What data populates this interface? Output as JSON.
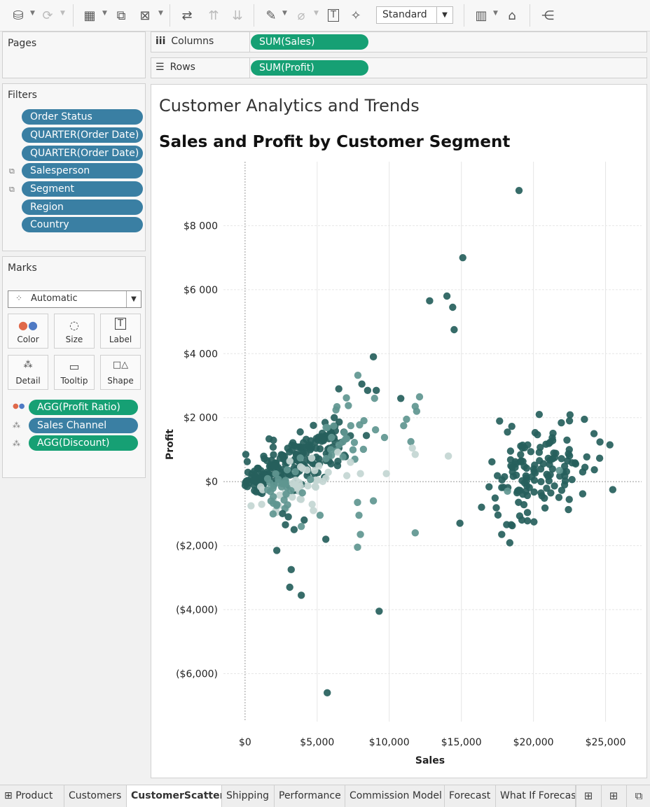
{
  "toolbar": {
    "view_select": "Standard"
  },
  "pages": {
    "title": "Pages"
  },
  "shelves": {
    "columns_label": "Columns",
    "columns_pill": "SUM(Sales)",
    "rows_label": "Rows",
    "rows_pill": "SUM(Profit)"
  },
  "filters": {
    "title": "Filters",
    "items": [
      "Order Status",
      "QUARTER(Order Date)",
      "QUARTER(Order Date)",
      "Salesperson",
      "Segment",
      "Region",
      "Country"
    ]
  },
  "marks": {
    "title": "Marks",
    "type": "Automatic",
    "buttons": [
      "Color",
      "Size",
      "Label",
      "Detail",
      "Tooltip",
      "Shape"
    ],
    "fields": [
      "AGG(Profit Ratio)",
      "Sales Channel",
      "AGG(Discount)"
    ]
  },
  "viz": {
    "title": "Customer Analytics and Trends",
    "subtitle": "Sales and Profit by Customer Segment"
  },
  "chart_data": {
    "type": "scatter",
    "xlabel": "Sales",
    "ylabel": "Profit",
    "xlim": [
      -1500,
      27500
    ],
    "ylim": [
      -7500,
      10000
    ],
    "x_ticks": [
      0,
      5000,
      10000,
      15000,
      20000,
      25000
    ],
    "x_tick_labels": [
      "$0",
      "$5,000",
      "$10,000",
      "$15,000",
      "$20,000",
      "$25,000"
    ],
    "y_ticks": [
      8000,
      6000,
      4000,
      2000,
      0,
      -2000,
      -4000,
      -6000
    ],
    "y_tick_labels": [
      "$8 000",
      "$6 000",
      "$4 000",
      "$2 000",
      "$0",
      "($2,000)",
      "($4,000)",
      "($6,000)"
    ],
    "grid": true,
    "color_dark": "#26605c",
    "color_mid": "#5f9690",
    "color_light": "#c3d6d2",
    "points": [
      {
        "x": 19000,
        "y": 9100,
        "c": 1
      },
      {
        "x": 15100,
        "y": 7000,
        "c": 1
      },
      {
        "x": 14000,
        "y": 5800,
        "c": 1
      },
      {
        "x": 12800,
        "y": 5650,
        "c": 1
      },
      {
        "x": 14400,
        "y": 5450,
        "c": 1
      },
      {
        "x": 14500,
        "y": 4750,
        "c": 1
      },
      {
        "x": 8900,
        "y": 3900,
        "c": 1
      },
      {
        "x": 8100,
        "y": 3050,
        "c": 1
      },
      {
        "x": 6500,
        "y": 2900,
        "c": 1
      },
      {
        "x": 8500,
        "y": 2850,
        "c": 1
      },
      {
        "x": 9100,
        "y": 2850,
        "c": 1
      },
      {
        "x": 10800,
        "y": 2600,
        "c": 1
      },
      {
        "x": 12100,
        "y": 2650,
        "c": 0.6
      },
      {
        "x": 11800,
        "y": 2350,
        "c": 0.6
      },
      {
        "x": 11900,
        "y": 2200,
        "c": 0.6
      },
      {
        "x": 11200,
        "y": 1950,
        "c": 0.6
      },
      {
        "x": 11000,
        "y": 1750,
        "c": 0.6
      },
      {
        "x": 11500,
        "y": 1250,
        "c": 0.6
      },
      {
        "x": 11600,
        "y": 1050,
        "c": 0.35
      },
      {
        "x": 14100,
        "y": 800,
        "c": 0.35
      },
      {
        "x": 9800,
        "y": 250,
        "c": 0.35
      },
      {
        "x": 11800,
        "y": 850,
        "c": 0.35
      },
      {
        "x": 8000,
        "y": 250,
        "c": 0.35
      },
      {
        "x": 8900,
        "y": -600,
        "c": 0.6
      },
      {
        "x": 7800,
        "y": -650,
        "c": 0.6
      },
      {
        "x": 7900,
        "y": -1050,
        "c": 0.6
      },
      {
        "x": 8000,
        "y": -1650,
        "c": 0.6
      },
      {
        "x": 7800,
        "y": -2050,
        "c": 0.6
      },
      {
        "x": 11800,
        "y": -1600,
        "c": 0.6
      },
      {
        "x": 5200,
        "y": -1050,
        "c": 0.6
      },
      {
        "x": 5600,
        "y": -1800,
        "c": 1
      },
      {
        "x": 2200,
        "y": -2150,
        "c": 1
      },
      {
        "x": 3200,
        "y": -2750,
        "c": 1
      },
      {
        "x": 3100,
        "y": -3300,
        "c": 1
      },
      {
        "x": 3900,
        "y": -3550,
        "c": 1
      },
      {
        "x": 9300,
        "y": -4050,
        "c": 1
      },
      {
        "x": 5700,
        "y": -6600,
        "c": 1
      },
      {
        "x": 14900,
        "y": -1300,
        "c": 1
      },
      {
        "x": 2600,
        "y": -1000,
        "c": 1
      },
      {
        "x": 3000,
        "y": -1100,
        "c": 1
      },
      {
        "x": 2800,
        "y": -1350,
        "c": 1
      },
      {
        "x": 3400,
        "y": -1500,
        "c": 1
      },
      {
        "x": 4100,
        "y": -1200,
        "c": 1
      },
      {
        "x": 3900,
        "y": -1400,
        "c": 0.6
      },
      {
        "x": 25500,
        "y": -250,
        "c": 1
      },
      {
        "x": 25300,
        "y": 1150,
        "c": 1
      },
      {
        "x": 22500,
        "y": 1900,
        "c": 1
      },
      {
        "x": 20400,
        "y": 2100,
        "c": 1
      },
      {
        "x": 18200,
        "y": 1550,
        "c": 1
      },
      {
        "x": 24200,
        "y": 1500,
        "c": 1
      },
      {
        "x": 17800,
        "y": -1650,
        "c": 1
      },
      {
        "x": 19200,
        "y": -1200,
        "c": 1
      },
      {
        "x": 16400,
        "y": -800,
        "c": 1
      },
      {
        "x": 18200,
        "y": -300,
        "c": 0.6
      },
      {
        "x": 21800,
        "y": 350,
        "c": 0.6
      }
    ],
    "clusters": [
      {
        "cx": 3300,
        "cy": 650,
        "sx": 1600,
        "sy": 420,
        "n": 90,
        "c": 1,
        "seed": 11
      },
      {
        "cx": 5200,
        "cy": 1050,
        "sx": 1500,
        "sy": 380,
        "n": 55,
        "c": 1,
        "seed": 12
      },
      {
        "cx": 1100,
        "cy": 150,
        "sx": 550,
        "sy": 220,
        "n": 60,
        "c": 1,
        "seed": 13
      },
      {
        "cx": 6800,
        "cy": 1300,
        "sx": 1300,
        "sy": 600,
        "n": 30,
        "c": 0.6,
        "seed": 14
      },
      {
        "cx": 3500,
        "cy": -150,
        "sx": 1300,
        "sy": 300,
        "n": 45,
        "c": 0.35,
        "seed": 15
      },
      {
        "cx": 2300,
        "cy": -250,
        "sx": 900,
        "sy": 350,
        "n": 30,
        "c": 0.6,
        "seed": 16
      },
      {
        "cx": 20200,
        "cy": 250,
        "sx": 1700,
        "sy": 650,
        "n": 130,
        "c": 1,
        "seed": 17
      }
    ]
  },
  "tabs": [
    "Product",
    "Customers",
    "CustomerScatter",
    "Shipping",
    "Performance",
    "Commission Model",
    "Forecast",
    "What If Forecast"
  ],
  "active_tab": "CustomerScatter"
}
